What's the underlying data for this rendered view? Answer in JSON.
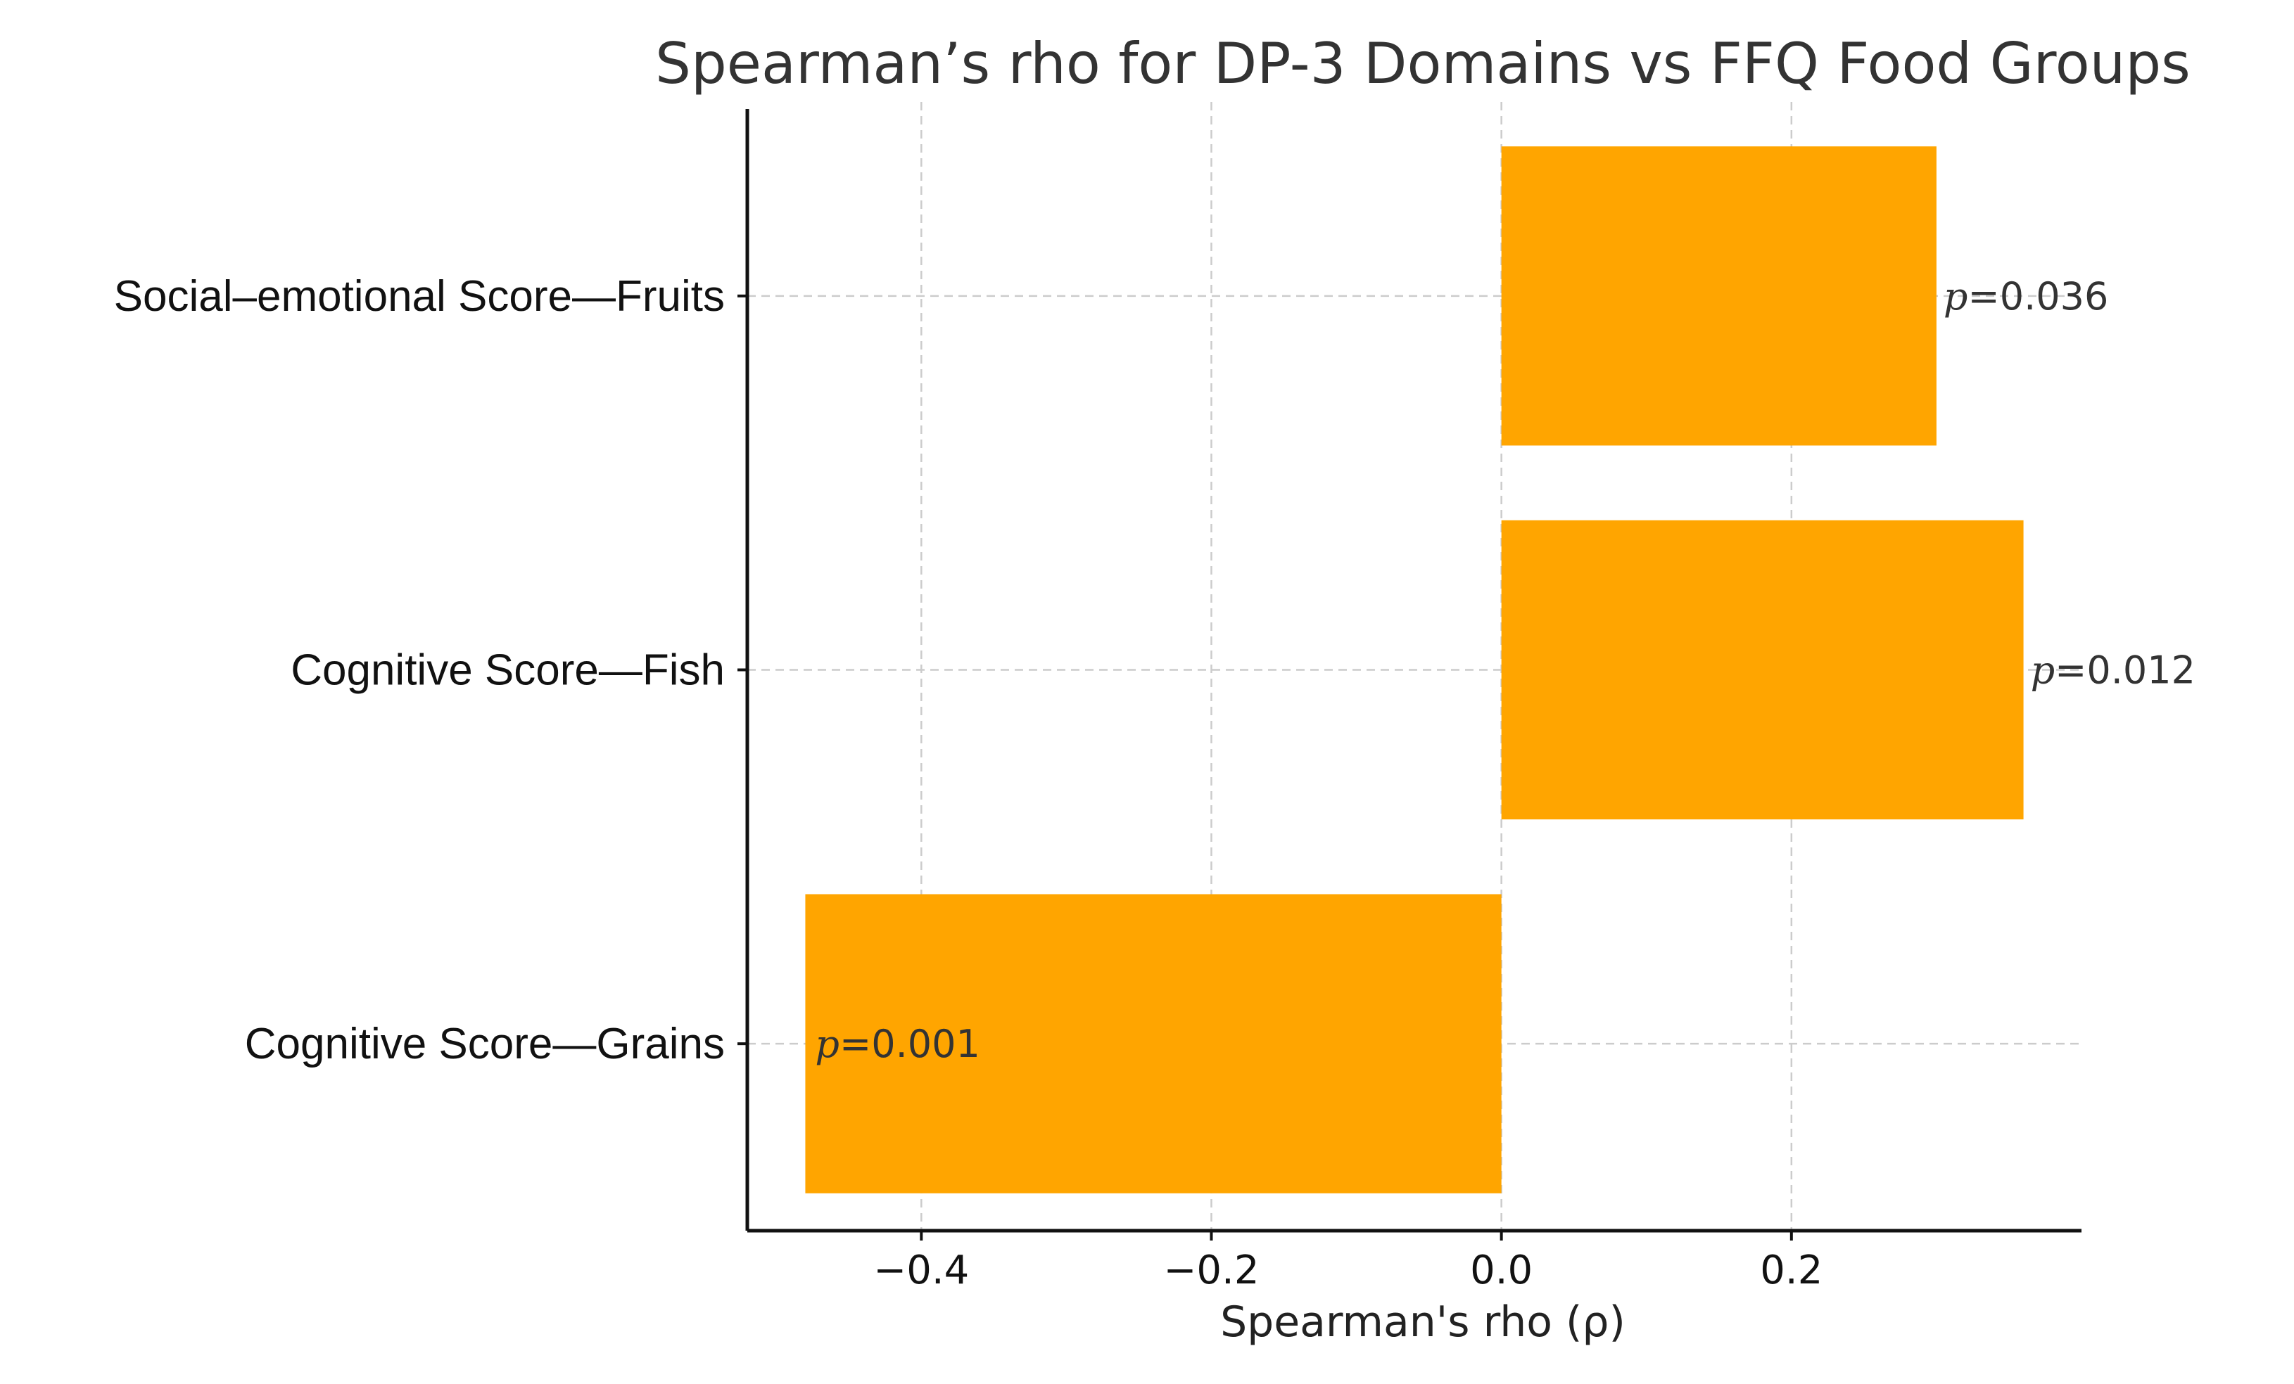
{
  "chart_data": {
    "type": "bar",
    "orientation": "horizontal",
    "title": "Spearman’s rho for DP-3 Domains vs FFQ Food Groups",
    "xlabel": "Spearman's rho (ρ)",
    "ylabel": "",
    "xlim": [
      -0.52,
      0.4
    ],
    "xticks": [
      -0.4,
      -0.2,
      0.0,
      0.2
    ],
    "xtick_labels": [
      "−0.4",
      "−0.2",
      "0.0",
      "0.2"
    ],
    "grid": true,
    "bar_color": "#FFA500",
    "categories": [
      "Social–emotional Score—Fruits",
      "Cognitive Score—Fish",
      "Cognitive Score—Grains"
    ],
    "values": [
      0.3,
      0.36,
      -0.48
    ],
    "annotations": [
      {
        "p_symbol": "p",
        "text": "=0.036"
      },
      {
        "p_symbol": "p",
        "text": "=0.012"
      },
      {
        "p_symbol": "p",
        "text": "=0.001"
      }
    ]
  }
}
